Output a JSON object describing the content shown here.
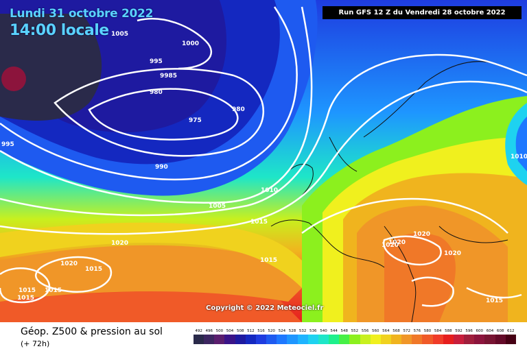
{
  "header": {
    "date_line": "Lundi 31 octobre 2022",
    "time_line": "14:00 locale",
    "run_info": "Run GFS 12 Z du Vendredi 28 octobre 2022"
  },
  "copyright": "Copyright © 2022 Meteociel.fr",
  "footer": {
    "title": "Géop. Z500 & pression au sol",
    "subtitle": "(+ 72h)"
  },
  "scale_labels": [
    "492",
    "496",
    "500",
    "504",
    "508",
    "512",
    "516",
    "520",
    "524",
    "528",
    "532",
    "536",
    "540",
    "544",
    "548",
    "552",
    "556",
    "560",
    "564",
    "568",
    "572",
    "576",
    "580",
    "584",
    "588",
    "592",
    "596",
    "600",
    "604",
    "608",
    "612"
  ],
  "scale_colors": [
    "#2a2a4a",
    "#3c2660",
    "#5a1e6e",
    "#3a1488",
    "#1e1aa0",
    "#1428c0",
    "#1e3ce0",
    "#1e5af0",
    "#1e78ff",
    "#1e96ff",
    "#1eb4ff",
    "#1ed2f0",
    "#1ee6c8",
    "#1ef08c",
    "#46f046",
    "#8cf01e",
    "#c8f01e",
    "#f0f01e",
    "#f0d21e",
    "#f0b41e",
    "#f09628",
    "#f07828",
    "#f05a28",
    "#f03c28",
    "#e61e1e",
    "#c81e3c",
    "#a01e3c",
    "#8c143c",
    "#781432",
    "#640a28",
    "#460014"
  ],
  "isobar_labels": [
    {
      "text": "1005"
    },
    {
      "text": "1000"
    },
    {
      "text": "995"
    },
    {
      "text": "9985"
    },
    {
      "text": "980"
    },
    {
      "text": "980"
    },
    {
      "text": "975"
    },
    {
      "text": "990"
    },
    {
      "text": "995"
    },
    {
      "text": "1010"
    },
    {
      "text": "1005"
    },
    {
      "text": "1015"
    },
    {
      "text": "1020"
    },
    {
      "text": "1020"
    },
    {
      "text": "1015"
    },
    {
      "text": "1015"
    },
    {
      "text": "1015"
    },
    {
      "text": "1015"
    },
    {
      "text": "1015"
    },
    {
      "text": "1020"
    },
    {
      "text": "1020"
    },
    {
      "text": "1020"
    },
    {
      "text": "1020"
    },
    {
      "text": "1015"
    },
    {
      "text": "1010"
    }
  ]
}
